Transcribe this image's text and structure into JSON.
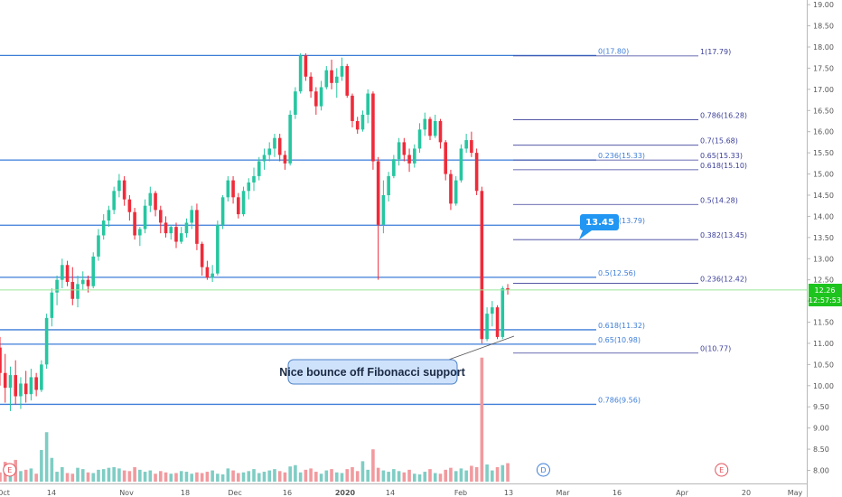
{
  "colors": {
    "up": "#26c6a0",
    "down": "#ef2b3a",
    "vol_up": "#7fcdc4",
    "vol_down": "#f19a9f",
    "fib_blue": "#3d7dd8",
    "fib_navy": "#3b3f99",
    "price_line": "#9be89b",
    "price_tag": "#1ec41e",
    "callout": "#2196f3"
  },
  "chart_data": {
    "type": "candlestick",
    "y_axis": {
      "range": [
        7.76,
        19.2
      ],
      "ticks": [
        "8.00",
        "8.50",
        "9.00",
        "9.50",
        "10.00",
        "10.50",
        "11.00",
        "11.50",
        "12.00",
        "12.50",
        "13.00",
        "13.50",
        "14.00",
        "14.50",
        "15.00",
        "15.50",
        "16.00",
        "16.50",
        "17.00",
        "17.50",
        "18.00",
        "18.50",
        "19.00"
      ]
    },
    "x_axis": {
      "ticks": [
        "Oct",
        "14",
        "Nov",
        "18",
        "Dec",
        "16",
        "2020",
        "14",
        "Feb",
        "13",
        "Mar",
        "16",
        "Apr",
        "20",
        "May"
      ],
      "bold_ticks": [
        "2020"
      ]
    },
    "fib_wide": [
      {
        "label": "0(17.80)",
        "value": 17.8
      },
      {
        "label": "0.236(15.33)",
        "value": 15.33
      },
      {
        "label": "0.382(13.79)",
        "value": 13.79
      },
      {
        "label": "0.5(12.56)",
        "value": 12.56
      },
      {
        "label": "0.618(11.32)",
        "value": 11.32
      },
      {
        "label": "0.65(10.98)",
        "value": 10.98
      },
      {
        "label": "0.786(9.56)",
        "value": 9.56
      }
    ],
    "fib_short": [
      {
        "label": "1(17.79)",
        "value": 17.79
      },
      {
        "label": "0.786(16.28)",
        "value": 16.28
      },
      {
        "label": "0.7(15.68)",
        "value": 15.68
      },
      {
        "label": "0.65(15.33)",
        "value": 15.33
      },
      {
        "label": "0.618(15.10)",
        "value": 15.1
      },
      {
        "label": "0.5(14.28)",
        "value": 14.28
      },
      {
        "label": "0.382(13.45)",
        "value": 13.45
      },
      {
        "label": "0.236(12.42)",
        "value": 12.42
      },
      {
        "label": "0(10.77)",
        "value": 10.77
      }
    ],
    "current_price": {
      "value": 12.26,
      "label": "12.26",
      "countdown": "12:57:53"
    },
    "callout_value": "13.45",
    "annotation": "Nice bounce off Fibonacci support",
    "event_markers": [
      {
        "label": "E",
        "type": "earnings",
        "x": 0.3
      },
      {
        "label": "D",
        "type": "dividend",
        "x": 103.3
      },
      {
        "label": "E",
        "type": "earnings",
        "x": 137.7
      },
      {
        "label": "E",
        "type": "earnings",
        "x": 275.3
      }
    ],
    "candles": [
      {
        "o": 10.9,
        "h": 11.15,
        "l": 10.0,
        "c": 10.3
      },
      {
        "o": 10.3,
        "h": 10.75,
        "l": 9.6,
        "c": 9.95
      },
      {
        "o": 9.95,
        "h": 10.45,
        "l": 9.4,
        "c": 10.25
      },
      {
        "o": 10.25,
        "h": 10.6,
        "l": 9.55,
        "c": 9.75
      },
      {
        "o": 9.75,
        "h": 10.2,
        "l": 9.45,
        "c": 10.05
      },
      {
        "o": 10.05,
        "h": 10.35,
        "l": 9.6,
        "c": 9.8
      },
      {
        "o": 9.8,
        "h": 10.4,
        "l": 9.65,
        "c": 10.2
      },
      {
        "o": 10.2,
        "h": 10.3,
        "l": 9.75,
        "c": 9.9
      },
      {
        "o": 9.9,
        "h": 10.6,
        "l": 9.85,
        "c": 10.5
      },
      {
        "o": 10.5,
        "h": 11.7,
        "l": 10.4,
        "c": 11.6
      },
      {
        "o": 11.6,
        "h": 12.3,
        "l": 11.4,
        "c": 12.2
      },
      {
        "o": 12.2,
        "h": 12.6,
        "l": 11.9,
        "c": 12.5
      },
      {
        "o": 12.5,
        "h": 13.0,
        "l": 12.3,
        "c": 12.85
      },
      {
        "o": 12.85,
        "h": 12.95,
        "l": 12.35,
        "c": 12.45
      },
      {
        "o": 12.45,
        "h": 12.8,
        "l": 11.9,
        "c": 12.05
      },
      {
        "o": 12.05,
        "h": 12.6,
        "l": 11.85,
        "c": 12.4
      },
      {
        "o": 12.4,
        "h": 12.7,
        "l": 12.25,
        "c": 12.5
      },
      {
        "o": 12.5,
        "h": 12.6,
        "l": 12.2,
        "c": 12.35
      },
      {
        "o": 12.35,
        "h": 13.15,
        "l": 12.3,
        "c": 13.05
      },
      {
        "o": 13.05,
        "h": 13.7,
        "l": 12.95,
        "c": 13.55
      },
      {
        "o": 13.55,
        "h": 14.05,
        "l": 13.45,
        "c": 13.9
      },
      {
        "o": 13.9,
        "h": 14.25,
        "l": 13.75,
        "c": 14.15
      },
      {
        "o": 14.15,
        "h": 14.7,
        "l": 14.05,
        "c": 14.6
      },
      {
        "o": 14.6,
        "h": 15.0,
        "l": 14.45,
        "c": 14.85
      },
      {
        "o": 14.85,
        "h": 14.95,
        "l": 14.25,
        "c": 14.4
      },
      {
        "o": 14.4,
        "h": 14.5,
        "l": 13.9,
        "c": 14.1
      },
      {
        "o": 14.1,
        "h": 14.2,
        "l": 13.45,
        "c": 13.55
      },
      {
        "o": 13.55,
        "h": 13.75,
        "l": 13.3,
        "c": 13.7
      },
      {
        "o": 13.7,
        "h": 14.4,
        "l": 13.6,
        "c": 14.25
      },
      {
        "o": 14.25,
        "h": 14.7,
        "l": 14.1,
        "c": 14.55
      },
      {
        "o": 14.55,
        "h": 14.6,
        "l": 14.0,
        "c": 14.15
      },
      {
        "o": 14.15,
        "h": 14.25,
        "l": 13.6,
        "c": 13.85
      },
      {
        "o": 13.85,
        "h": 14.0,
        "l": 13.5,
        "c": 13.6
      },
      {
        "o": 13.6,
        "h": 13.8,
        "l": 13.45,
        "c": 13.75
      },
      {
        "o": 13.75,
        "h": 13.85,
        "l": 13.25,
        "c": 13.4
      },
      {
        "o": 13.4,
        "h": 13.75,
        "l": 13.35,
        "c": 13.6
      },
      {
        "o": 13.6,
        "h": 13.95,
        "l": 13.5,
        "c": 13.85
      },
      {
        "o": 13.85,
        "h": 14.25,
        "l": 13.7,
        "c": 14.15
      },
      {
        "o": 14.15,
        "h": 14.3,
        "l": 13.2,
        "c": 13.35
      },
      {
        "o": 13.35,
        "h": 13.4,
        "l": 12.6,
        "c": 12.8
      },
      {
        "o": 12.8,
        "h": 12.95,
        "l": 12.5,
        "c": 12.55
      },
      {
        "o": 12.55,
        "h": 12.85,
        "l": 12.45,
        "c": 12.65
      },
      {
        "o": 12.65,
        "h": 13.9,
        "l": 12.6,
        "c": 13.8
      },
      {
        "o": 13.8,
        "h": 14.5,
        "l": 13.7,
        "c": 14.45
      },
      {
        "o": 14.45,
        "h": 14.95,
        "l": 14.35,
        "c": 14.85
      },
      {
        "o": 14.85,
        "h": 14.95,
        "l": 14.3,
        "c": 14.45
      },
      {
        "o": 14.45,
        "h": 14.55,
        "l": 13.95,
        "c": 14.05
      },
      {
        "o": 14.05,
        "h": 14.7,
        "l": 14.0,
        "c": 14.6
      },
      {
        "o": 14.6,
        "h": 14.9,
        "l": 14.4,
        "c": 14.8
      },
      {
        "o": 14.8,
        "h": 15.15,
        "l": 14.6,
        "c": 14.95
      },
      {
        "o": 14.95,
        "h": 15.4,
        "l": 14.85,
        "c": 15.3
      },
      {
        "o": 15.3,
        "h": 15.6,
        "l": 15.1,
        "c": 15.45
      },
      {
        "o": 15.45,
        "h": 15.75,
        "l": 15.3,
        "c": 15.6
      },
      {
        "o": 15.6,
        "h": 15.95,
        "l": 15.4,
        "c": 15.85
      },
      {
        "o": 15.85,
        "h": 15.95,
        "l": 15.3,
        "c": 15.45
      },
      {
        "o": 15.45,
        "h": 15.55,
        "l": 15.1,
        "c": 15.25
      },
      {
        "o": 15.25,
        "h": 16.5,
        "l": 15.2,
        "c": 16.4
      },
      {
        "o": 16.4,
        "h": 17.05,
        "l": 16.3,
        "c": 16.95
      },
      {
        "o": 16.95,
        "h": 17.85,
        "l": 16.9,
        "c": 17.8
      },
      {
        "o": 17.8,
        "h": 17.85,
        "l": 17.2,
        "c": 17.3
      },
      {
        "o": 17.3,
        "h": 17.4,
        "l": 16.8,
        "c": 16.95
      },
      {
        "o": 16.95,
        "h": 17.05,
        "l": 16.4,
        "c": 16.6
      },
      {
        "o": 16.6,
        "h": 17.2,
        "l": 16.5,
        "c": 17.05
      },
      {
        "o": 17.05,
        "h": 17.55,
        "l": 17.0,
        "c": 17.45
      },
      {
        "o": 17.45,
        "h": 17.7,
        "l": 17.0,
        "c": 17.15
      },
      {
        "o": 17.15,
        "h": 17.5,
        "l": 16.8,
        "c": 17.3
      },
      {
        "o": 17.3,
        "h": 17.75,
        "l": 17.2,
        "c": 17.55
      },
      {
        "o": 17.55,
        "h": 17.6,
        "l": 16.8,
        "c": 16.85
      },
      {
        "o": 16.85,
        "h": 16.9,
        "l": 16.1,
        "c": 16.25
      },
      {
        "o": 16.25,
        "h": 16.35,
        "l": 15.95,
        "c": 16.05
      },
      {
        "o": 16.05,
        "h": 16.5,
        "l": 16.0,
        "c": 16.4
      },
      {
        "o": 16.4,
        "h": 17.0,
        "l": 16.2,
        "c": 16.9
      },
      {
        "o": 16.9,
        "h": 16.95,
        "l": 15.1,
        "c": 15.3
      },
      {
        "o": 15.3,
        "h": 15.4,
        "l": 12.5,
        "c": 13.8
      },
      {
        "o": 13.8,
        "h": 14.85,
        "l": 13.6,
        "c": 14.5
      },
      {
        "o": 14.5,
        "h": 15.05,
        "l": 14.35,
        "c": 14.95
      },
      {
        "o": 14.95,
        "h": 15.45,
        "l": 14.9,
        "c": 15.35
      },
      {
        "o": 15.35,
        "h": 15.85,
        "l": 15.2,
        "c": 15.75
      },
      {
        "o": 15.75,
        "h": 15.85,
        "l": 15.3,
        "c": 15.45
      },
      {
        "o": 15.45,
        "h": 15.6,
        "l": 15.05,
        "c": 15.25
      },
      {
        "o": 15.25,
        "h": 15.7,
        "l": 15.15,
        "c": 15.6
      },
      {
        "o": 15.6,
        "h": 16.2,
        "l": 15.5,
        "c": 16.05
      },
      {
        "o": 16.05,
        "h": 16.45,
        "l": 15.9,
        "c": 16.3
      },
      {
        "o": 16.3,
        "h": 16.35,
        "l": 15.8,
        "c": 15.9
      },
      {
        "o": 15.9,
        "h": 16.4,
        "l": 15.85,
        "c": 16.25
      },
      {
        "o": 16.25,
        "h": 16.3,
        "l": 15.6,
        "c": 15.75
      },
      {
        "o": 15.75,
        "h": 15.8,
        "l": 14.85,
        "c": 15.0
      },
      {
        "o": 15.0,
        "h": 15.1,
        "l": 14.15,
        "c": 14.3
      },
      {
        "o": 14.3,
        "h": 14.95,
        "l": 14.25,
        "c": 14.85
      },
      {
        "o": 14.85,
        "h": 15.7,
        "l": 14.8,
        "c": 15.6
      },
      {
        "o": 15.6,
        "h": 15.95,
        "l": 15.5,
        "c": 15.8
      },
      {
        "o": 15.8,
        "h": 16.0,
        "l": 15.4,
        "c": 15.5
      },
      {
        "o": 15.5,
        "h": 15.6,
        "l": 14.5,
        "c": 14.6
      },
      {
        "o": 14.6,
        "h": 14.7,
        "l": 11.0,
        "c": 11.1
      },
      {
        "o": 11.1,
        "h": 11.85,
        "l": 11.05,
        "c": 11.7
      },
      {
        "o": 11.7,
        "h": 12.0,
        "l": 11.4,
        "c": 11.85
      },
      {
        "o": 11.85,
        "h": 11.9,
        "l": 11.1,
        "c": 11.15
      },
      {
        "o": 11.15,
        "h": 12.35,
        "l": 11.1,
        "c": 12.3
      },
      {
        "o": 12.3,
        "h": 12.4,
        "l": 12.15,
        "c": 12.26
      }
    ],
    "volume": [
      14,
      30,
      17,
      33,
      16,
      18,
      20,
      12,
      48,
      75,
      36,
      15,
      22,
      13,
      12,
      21,
      19,
      14,
      13,
      18,
      19,
      21,
      22,
      20,
      17,
      16,
      22,
      18,
      15,
      17,
      12,
      16,
      14,
      12,
      13,
      16,
      15,
      12,
      14,
      13,
      15,
      17,
      12,
      11,
      20,
      17,
      13,
      14,
      16,
      19,
      13,
      15,
      17,
      19,
      16,
      14,
      23,
      25,
      14,
      18,
      20,
      15,
      12,
      17,
      19,
      14,
      13,
      19,
      22,
      16,
      31,
      18,
      49,
      21,
      17,
      15,
      19,
      16,
      14,
      18,
      12,
      11,
      15,
      19,
      13,
      12,
      18,
      21,
      16,
      20,
      17,
      24,
      22,
      188,
      26,
      17,
      22,
      25,
      28,
      40
    ]
  }
}
